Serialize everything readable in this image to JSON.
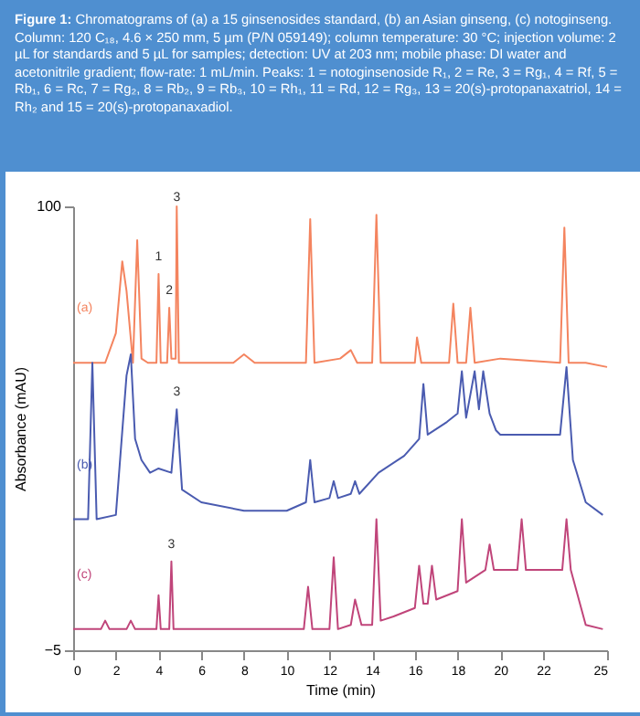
{
  "chart_data": {
    "type": "line",
    "title": "Figure 1:",
    "subtitle": "Chromatograms of (a) a 15 ginsenosides standard, (b) an Asian ginseng, (c) notoginseng. Column: 120 C₁₈, 4.6 × 250 mm, 5 µm (P/N 059149); column temperature: 30 °C; injection volume: 2 µL for standards and 5 µL for samples; detection: UV at 203 nm; mobile phase: DI water and acetonitrile gradient; flow-rate: 1 mL/min. Peaks: 1 = notoginsenoside R₁, 2 = Re, 3 = Rg₁, 4 = Rf, 5 = Rb₁, 6 = Rc, 7 = Rg₂, 8 = Rb₂, 9 = Rb₃, 10 = Rh₁, 11 = Rd, 12 = Rg₃, 13 = 20(s)-protopanaxatriol, 14 = Rh₂ and 15 = 20(s)-protopanaxadiol.",
    "xlabel": "Time (min)",
    "ylabel": "Absorbance (mAU)",
    "xlim": [
      0,
      25
    ],
    "xticks": [
      0,
      2,
      4,
      6,
      8,
      10,
      12,
      14,
      16,
      18,
      20,
      22,
      25
    ],
    "ylim": [
      -5,
      100
    ],
    "yticks": [
      -5,
      100
    ],
    "grid": false,
    "legend": false,
    "series": [
      {
        "name": "(a)",
        "color": "#f4845f",
        "x": [
          0,
          1.5,
          2.0,
          2.3,
          2.5,
          2.8,
          3.0,
          3.2,
          3.5,
          3.9,
          4.0,
          4.1,
          4.4,
          4.5,
          4.6,
          4.8,
          4.85,
          4.95,
          5.5,
          7.5,
          8,
          8.5,
          10.9,
          11.1,
          11.3,
          12.5,
          13,
          13.3,
          14.0,
          14.2,
          14.4,
          16,
          16.1,
          16.3,
          17.6,
          17.8,
          18.0,
          18.4,
          18.6,
          18.8,
          20,
          22.8,
          23.0,
          23.2,
          24,
          25
        ],
        "values": [
          63,
          63,
          70,
          87,
          80,
          63,
          92,
          64,
          63,
          63,
          84,
          63,
          63,
          76,
          64,
          64,
          100,
          63,
          63,
          63,
          65,
          63,
          63,
          97,
          63,
          64,
          66,
          63,
          63,
          98,
          63,
          63,
          69,
          63,
          63,
          77,
          63,
          63,
          76,
          63,
          64,
          63,
          95,
          63,
          63,
          62
        ]
      },
      {
        "name": "(b)",
        "color": "#4a5bb0",
        "x": [
          0,
          0.7,
          0.9,
          1.1,
          2.0,
          2.5,
          2.7,
          2.9,
          3.2,
          3.6,
          4.0,
          4.6,
          4.85,
          5.1,
          6,
          8,
          10,
          10.9,
          11.1,
          11.3,
          12.0,
          12.2,
          12.4,
          13.0,
          13.2,
          13.4,
          14.3,
          15.5,
          16.2,
          16.4,
          16.6,
          17.5,
          18.0,
          18.2,
          18.4,
          18.8,
          19.0,
          19.2,
          19.5,
          19.8,
          20,
          22.8,
          23.1,
          23.4,
          24,
          24.8
        ],
        "values": [
          26,
          26,
          63,
          26,
          27,
          60,
          65,
          45,
          40,
          37,
          38,
          37,
          52,
          33,
          30,
          28,
          28,
          30,
          40,
          30,
          31,
          35,
          31,
          32,
          35,
          32,
          37,
          41,
          45,
          58,
          46,
          49,
          51,
          61,
          50,
          61,
          52,
          61,
          51,
          47,
          46,
          46,
          62,
          40,
          30,
          27
        ]
      },
      {
        "name": "(c)",
        "color": "#c0457a",
        "x": [
          0,
          1.3,
          1.5,
          1.7,
          2.5,
          2.7,
          2.9,
          3.9,
          4.0,
          4.1,
          4.5,
          4.6,
          4.7,
          6,
          10,
          10.8,
          11.0,
          11.2,
          12.0,
          12.2,
          12.4,
          13.0,
          13.2,
          13.5,
          14.0,
          14.2,
          14.4,
          15,
          16.0,
          16.2,
          16.4,
          16.6,
          16.8,
          17.0,
          18.0,
          18.2,
          18.4,
          19.3,
          19.5,
          19.7,
          20.8,
          21.0,
          21.2,
          22.9,
          23.1,
          23.3,
          24,
          24.8
        ],
        "values": [
          0,
          0,
          2,
          0,
          0,
          2,
          0,
          0,
          8,
          0,
          0,
          16,
          0,
          0,
          0,
          0,
          10,
          0,
          0,
          17,
          0,
          1,
          7,
          1,
          1,
          26,
          2,
          3,
          5,
          15,
          6,
          6,
          15,
          7,
          9,
          26,
          11,
          14,
          20,
          14,
          14,
          26,
          14,
          14,
          26,
          14,
          1,
          0
        ]
      }
    ],
    "annotations": [
      {
        "text": "1",
        "x": 4.0,
        "y": 86
      },
      {
        "text": "2",
        "x": 4.5,
        "y": 78
      },
      {
        "text": "3",
        "x": 4.85,
        "y": 100
      },
      {
        "text": "3",
        "x": 4.85,
        "y": 54
      },
      {
        "text": "3",
        "x": 4.6,
        "y": 18
      }
    ]
  }
}
